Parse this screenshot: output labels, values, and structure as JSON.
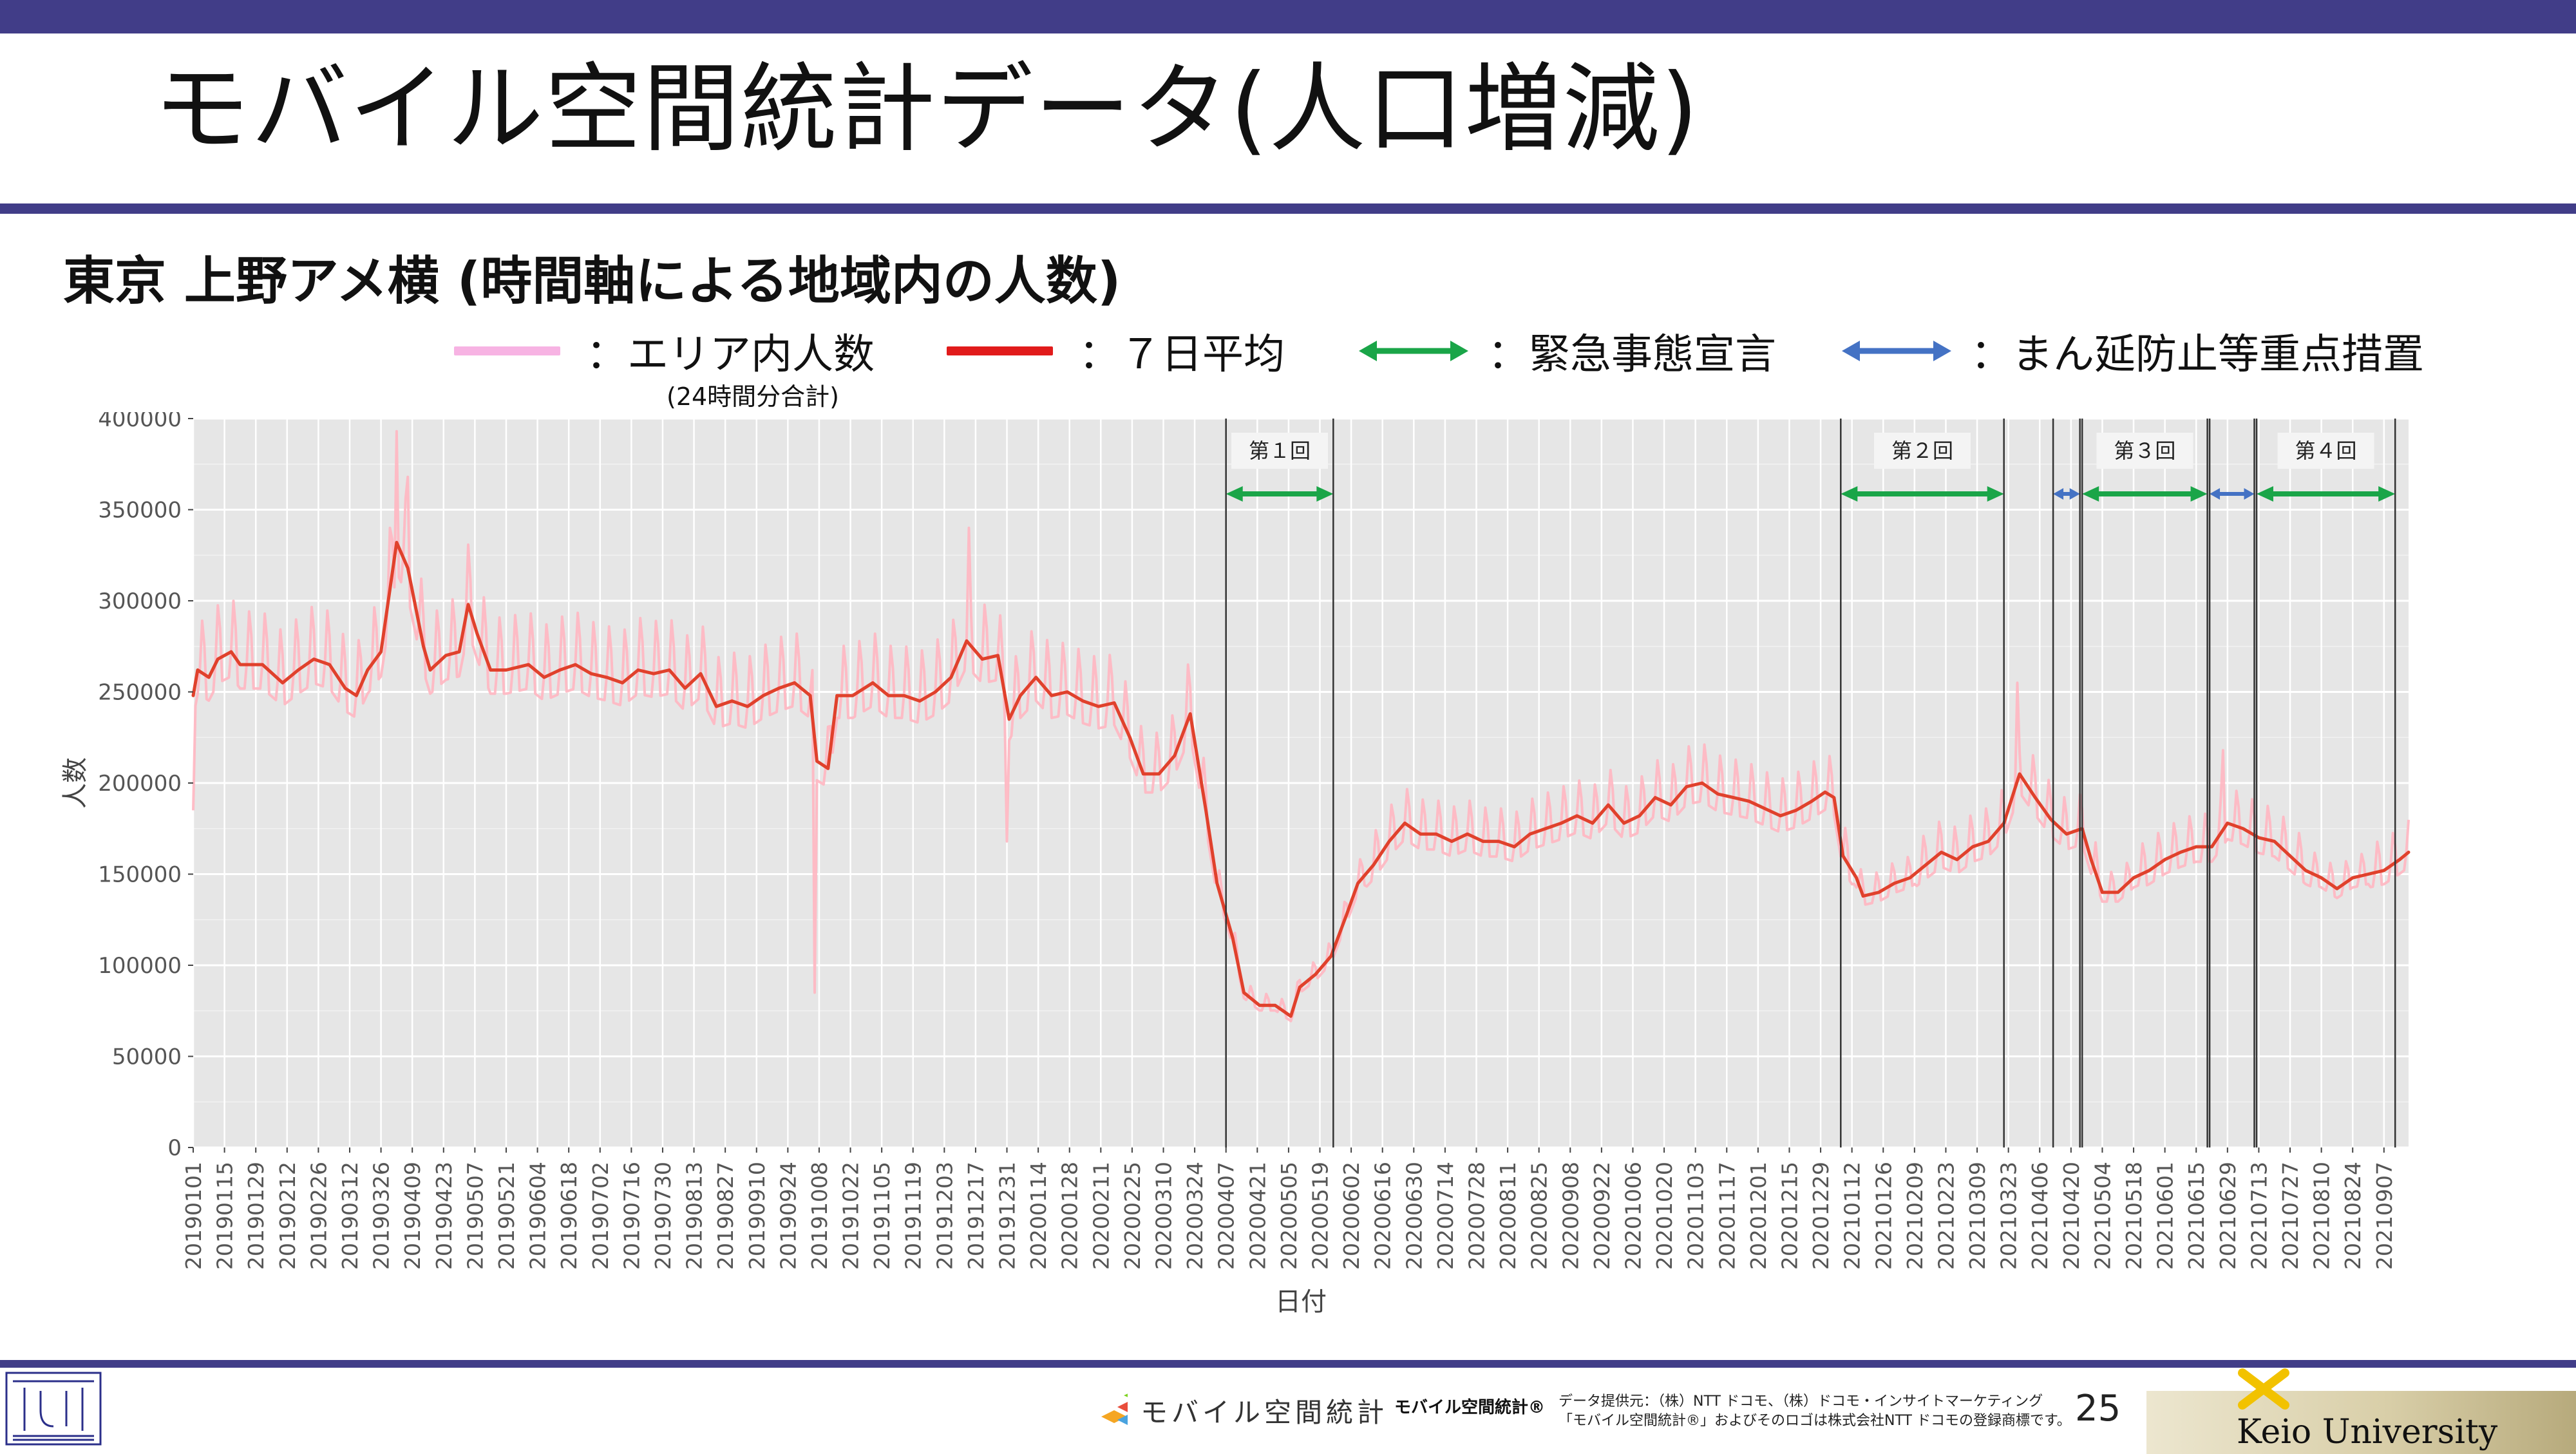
{
  "slide": {
    "title": "モバイル空間統計データ(人口増減)",
    "subtitle": "東京 上野アメ横 (時間軸による地域内の人数)",
    "page_number": "25"
  },
  "legend": {
    "items": [
      {
        "label": "：エリア内人数",
        "color": "#f7b3e3",
        "kind": "line"
      },
      {
        "label": "：７日平均",
        "color": "#e11b1b",
        "kind": "line"
      },
      {
        "label": "：緊急事態宣言",
        "color": "#1aa548",
        "kind": "arrow"
      },
      {
        "label": "：まん延防止等重点措置",
        "color": "#4472c4",
        "kind": "arrow"
      }
    ],
    "sub_note": "(24時間分合計)"
  },
  "footer": {
    "mobile_logo_text": "モバイル空間統計",
    "brand": "モバイル空間統計®",
    "credit_line1": "データ提供元：（株）NTT ドコモ、（株）ドコモ・インサイトマーケティング",
    "credit_line2": "「モバイル空間統計®」およびそのロゴは株式会社NTT ドコモの登録商標です。",
    "university": "Keio University"
  },
  "colors": {
    "header_bar": "#413d88",
    "plot_bg": "#e6e6e6",
    "daily_line": "#ffb6c1",
    "avg_line": "#e0412c",
    "emergency": "#1aa548",
    "priority": "#4472c4"
  },
  "chart_data": {
    "type": "line",
    "xlabel": "日付",
    "ylabel": "人数",
    "ylim": [
      0,
      400000
    ],
    "y_ticks": [
      0,
      50000,
      100000,
      150000,
      200000,
      250000,
      300000,
      350000,
      400000
    ],
    "x_range": [
      "2019-01-01",
      "2021-09-18"
    ],
    "x_ticks": [
      "20190101",
      "20190115",
      "20190129",
      "20190212",
      "20190226",
      "20190312",
      "20190326",
      "20190409",
      "20190423",
      "20190507",
      "20190521",
      "20190604",
      "20190618",
      "20190702",
      "20190716",
      "20190730",
      "20190813",
      "20190827",
      "20190910",
      "20190924",
      "20191008",
      "20191022",
      "20191105",
      "20191119",
      "20191203",
      "20191217",
      "20191231",
      "20200114",
      "20200128",
      "20200211",
      "20200225",
      "20200310",
      "20200324",
      "20200407",
      "20200421",
      "20200505",
      "20200519",
      "20200602",
      "20200616",
      "20200630",
      "20200714",
      "20200728",
      "20200811",
      "20200825",
      "20200908",
      "20200922",
      "20201006",
      "20201020",
      "20201103",
      "20201117",
      "20201201",
      "20201215",
      "20201229",
      "20210112",
      "20210126",
      "20210209",
      "20210223",
      "20210309",
      "20210323",
      "20210406",
      "20210420",
      "20210504",
      "20210518",
      "20210601",
      "20210615",
      "20210629",
      "20210713",
      "20210727",
      "20210810",
      "20210824",
      "20210907"
    ],
    "grid": true,
    "series": [
      {
        "name": "７日平均",
        "points": [
          [
            "2019-01-01",
            248000
          ],
          [
            "2019-01-03",
            262000
          ],
          [
            "2019-01-08",
            258000
          ],
          [
            "2019-01-12",
            268000
          ],
          [
            "2019-01-18",
            272000
          ],
          [
            "2019-01-22",
            265000
          ],
          [
            "2019-02-01",
            265000
          ],
          [
            "2019-02-10",
            255000
          ],
          [
            "2019-02-17",
            262000
          ],
          [
            "2019-02-24",
            268000
          ],
          [
            "2019-03-03",
            265000
          ],
          [
            "2019-03-10",
            252000
          ],
          [
            "2019-03-15",
            248000
          ],
          [
            "2019-03-20",
            262000
          ],
          [
            "2019-03-26",
            272000
          ],
          [
            "2019-04-02",
            332000
          ],
          [
            "2019-04-07",
            318000
          ],
          [
            "2019-04-14",
            275000
          ],
          [
            "2019-04-17",
            262000
          ],
          [
            "2019-04-24",
            270000
          ],
          [
            "2019-04-30",
            272000
          ],
          [
            "2019-05-04",
            298000
          ],
          [
            "2019-05-08",
            282000
          ],
          [
            "2019-05-14",
            262000
          ],
          [
            "2019-05-21",
            262000
          ],
          [
            "2019-05-31",
            265000
          ],
          [
            "2019-06-07",
            258000
          ],
          [
            "2019-06-14",
            262000
          ],
          [
            "2019-06-21",
            265000
          ],
          [
            "2019-06-28",
            260000
          ],
          [
            "2019-07-05",
            258000
          ],
          [
            "2019-07-12",
            255000
          ],
          [
            "2019-07-19",
            262000
          ],
          [
            "2019-07-26",
            260000
          ],
          [
            "2019-08-02",
            262000
          ],
          [
            "2019-08-09",
            252000
          ],
          [
            "2019-08-16",
            260000
          ],
          [
            "2019-08-23",
            242000
          ],
          [
            "2019-08-30",
            245000
          ],
          [
            "2019-09-06",
            242000
          ],
          [
            "2019-09-13",
            248000
          ],
          [
            "2019-09-20",
            252000
          ],
          [
            "2019-09-27",
            255000
          ],
          [
            "2019-10-04",
            248000
          ],
          [
            "2019-10-07",
            212000
          ],
          [
            "2019-10-12",
            208000
          ],
          [
            "2019-10-16",
            248000
          ],
          [
            "2019-10-23",
            248000
          ],
          [
            "2019-11-01",
            255000
          ],
          [
            "2019-11-08",
            248000
          ],
          [
            "2019-11-15",
            248000
          ],
          [
            "2019-11-22",
            245000
          ],
          [
            "2019-11-29",
            250000
          ],
          [
            "2019-12-06",
            258000
          ],
          [
            "2019-12-13",
            278000
          ],
          [
            "2019-12-20",
            268000
          ],
          [
            "2019-12-27",
            270000
          ],
          [
            "2020-01-01",
            235000
          ],
          [
            "2020-01-06",
            248000
          ],
          [
            "2020-01-13",
            258000
          ],
          [
            "2020-01-20",
            248000
          ],
          [
            "2020-01-27",
            250000
          ],
          [
            "2020-02-03",
            245000
          ],
          [
            "2020-02-10",
            242000
          ],
          [
            "2020-02-17",
            244000
          ],
          [
            "2020-02-24",
            225000
          ],
          [
            "2020-03-01",
            205000
          ],
          [
            "2020-03-08",
            205000
          ],
          [
            "2020-03-15",
            215000
          ],
          [
            "2020-03-22",
            238000
          ],
          [
            "2020-03-29",
            185000
          ],
          [
            "2020-04-03",
            145000
          ],
          [
            "2020-04-10",
            115000
          ],
          [
            "2020-04-15",
            85000
          ],
          [
            "2020-04-22",
            78000
          ],
          [
            "2020-04-29",
            78000
          ],
          [
            "2020-05-06",
            72000
          ],
          [
            "2020-05-10",
            88000
          ],
          [
            "2020-05-17",
            95000
          ],
          [
            "2020-05-24",
            105000
          ],
          [
            "2020-05-31",
            128000
          ],
          [
            "2020-06-05",
            145000
          ],
          [
            "2020-06-12",
            155000
          ],
          [
            "2020-06-19",
            168000
          ],
          [
            "2020-06-26",
            178000
          ],
          [
            "2020-07-03",
            172000
          ],
          [
            "2020-07-10",
            172000
          ],
          [
            "2020-07-17",
            168000
          ],
          [
            "2020-07-24",
            172000
          ],
          [
            "2020-07-31",
            168000
          ],
          [
            "2020-08-07",
            168000
          ],
          [
            "2020-08-14",
            165000
          ],
          [
            "2020-08-21",
            172000
          ],
          [
            "2020-08-28",
            175000
          ],
          [
            "2020-09-04",
            178000
          ],
          [
            "2020-09-11",
            182000
          ],
          [
            "2020-09-18",
            178000
          ],
          [
            "2020-09-25",
            188000
          ],
          [
            "2020-10-02",
            178000
          ],
          [
            "2020-10-09",
            182000
          ],
          [
            "2020-10-16",
            192000
          ],
          [
            "2020-10-23",
            188000
          ],
          [
            "2020-10-30",
            198000
          ],
          [
            "2020-11-06",
            200000
          ],
          [
            "2020-11-13",
            194000
          ],
          [
            "2020-11-20",
            192000
          ],
          [
            "2020-11-27",
            190000
          ],
          [
            "2020-12-04",
            186000
          ],
          [
            "2020-12-11",
            182000
          ],
          [
            "2020-12-18",
            185000
          ],
          [
            "2020-12-25",
            190000
          ],
          [
            "2020-12-31",
            195000
          ],
          [
            "2021-01-04",
            192000
          ],
          [
            "2021-01-08",
            160000
          ],
          [
            "2021-01-14",
            148000
          ],
          [
            "2021-01-17",
            138000
          ],
          [
            "2021-01-24",
            140000
          ],
          [
            "2021-01-31",
            145000
          ],
          [
            "2021-02-07",
            148000
          ],
          [
            "2021-02-14",
            155000
          ],
          [
            "2021-02-21",
            162000
          ],
          [
            "2021-02-28",
            158000
          ],
          [
            "2021-03-07",
            165000
          ],
          [
            "2021-03-14",
            168000
          ],
          [
            "2021-03-21",
            178000
          ],
          [
            "2021-03-28",
            205000
          ],
          [
            "2021-04-04",
            192000
          ],
          [
            "2021-04-11",
            180000
          ],
          [
            "2021-04-18",
            172000
          ],
          [
            "2021-04-25",
            175000
          ],
          [
            "2021-04-29",
            158000
          ],
          [
            "2021-05-04",
            140000
          ],
          [
            "2021-05-11",
            140000
          ],
          [
            "2021-05-18",
            148000
          ],
          [
            "2021-05-25",
            152000
          ],
          [
            "2021-06-01",
            158000
          ],
          [
            "2021-06-08",
            162000
          ],
          [
            "2021-06-15",
            165000
          ],
          [
            "2021-06-22",
            165000
          ],
          [
            "2021-06-29",
            178000
          ],
          [
            "2021-07-06",
            175000
          ],
          [
            "2021-07-13",
            170000
          ],
          [
            "2021-07-20",
            168000
          ],
          [
            "2021-07-27",
            160000
          ],
          [
            "2021-08-03",
            152000
          ],
          [
            "2021-08-10",
            148000
          ],
          [
            "2021-08-17",
            142000
          ],
          [
            "2021-08-24",
            148000
          ],
          [
            "2021-08-31",
            150000
          ],
          [
            "2021-09-07",
            152000
          ],
          [
            "2021-09-14",
            158000
          ],
          [
            "2021-09-18",
            162000
          ]
        ]
      },
      {
        "name": "エリア内人数",
        "note": "daily values oscillating around the 7-day average (weekend peaks, weekday troughs)",
        "spikes": [
          [
            "2019-01-01",
            185000
          ],
          [
            "2019-04-02",
            393000
          ],
          [
            "2019-04-07",
            368000
          ],
          [
            "2019-10-06",
            85000
          ],
          [
            "2019-12-14",
            340000
          ],
          [
            "2019-12-31",
            168000
          ],
          [
            "2020-03-21",
            265000
          ],
          [
            "2021-03-27",
            255000
          ],
          [
            "2021-06-27",
            218000
          ]
        ]
      }
    ],
    "annotations": [
      {
        "label": "第１回",
        "type": "緊急事態宣言",
        "start": "2020-04-07",
        "end": "2020-05-25"
      },
      {
        "label": "第２回",
        "type": "緊急事態宣言",
        "start": "2021-01-07",
        "end": "2021-03-21"
      },
      {
        "label": "",
        "type": "まん延防止等重点措置",
        "start": "2021-04-12",
        "end": "2021-04-24"
      },
      {
        "label": "第３回",
        "type": "緊急事態宣言",
        "start": "2021-04-25",
        "end": "2021-06-20"
      },
      {
        "label": "",
        "type": "まん延防止等重点措置",
        "start": "2021-06-21",
        "end": "2021-07-11"
      },
      {
        "label": "第４回",
        "type": "緊急事態宣言",
        "start": "2021-07-12",
        "end": "2021-09-12"
      }
    ]
  }
}
